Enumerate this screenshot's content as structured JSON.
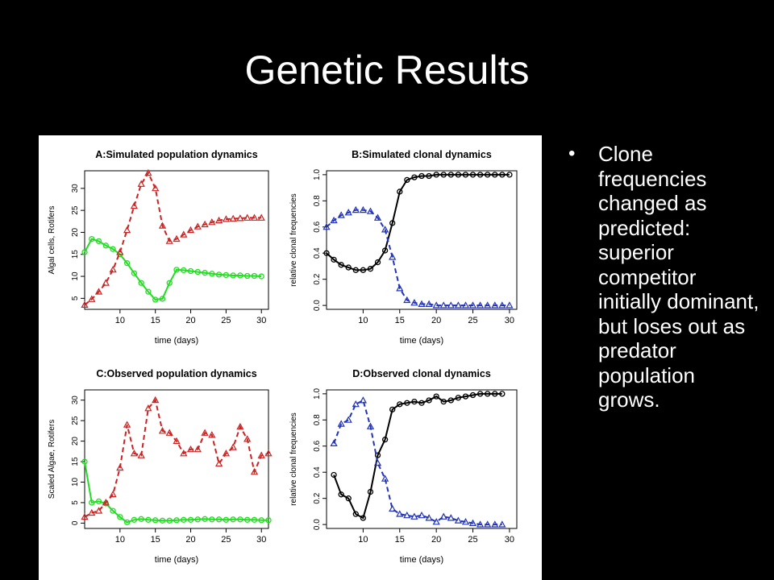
{
  "slide": {
    "title": "Genetic Results"
  },
  "bullets": [
    {
      "text": "Clone frequencies changed as predicted: superior competitor initially dominant, but loses out as predator population grows."
    }
  ],
  "colors": {
    "algae": "#22dd22",
    "rotifers": "#cc2222",
    "clone_blue": "#2233bb",
    "clone_black": "#000000"
  },
  "chart_data": [
    {
      "type": "line",
      "title": "A:Simulated population dynamics",
      "xlabel": "time (days)",
      "ylabel": "Algal cells, Rotifers",
      "xlim": [
        5,
        31
      ],
      "ylim": [
        2.5,
        34
      ],
      "xticks": [
        10,
        15,
        20,
        25,
        30
      ],
      "yticks": [
        5,
        10,
        15,
        20,
        25,
        30
      ],
      "series": [
        {
          "style": "green-solid-circle",
          "x": [
            5,
            6,
            7,
            8,
            9,
            10,
            11,
            12,
            13,
            14,
            15,
            16,
            17,
            18,
            19,
            20,
            21,
            22,
            23,
            24,
            25,
            26,
            27,
            28,
            29,
            30
          ],
          "values": [
            15.5,
            18.5,
            18,
            17,
            16.2,
            15,
            13,
            10.7,
            8.5,
            6.5,
            4.7,
            4.9,
            8.5,
            11.5,
            11.4,
            11.2,
            11,
            10.8,
            10.6,
            10.4,
            10.3,
            10.2,
            10.2,
            10.1,
            10.1,
            10
          ]
        },
        {
          "style": "red-dashed-triangle",
          "x": [
            5,
            6,
            7,
            8,
            9,
            10,
            11,
            12,
            13,
            14,
            15,
            16,
            17,
            18,
            19,
            20,
            21,
            22,
            23,
            24,
            25,
            26,
            27,
            28,
            29,
            30
          ],
          "values": [
            3.5,
            4.8,
            6.5,
            8.5,
            11.5,
            15.5,
            20.5,
            26,
            31,
            33.5,
            30,
            21.5,
            18,
            18.5,
            19.5,
            20.5,
            21.3,
            21.8,
            22.3,
            22.7,
            23,
            23.1,
            23.2,
            23.3,
            23.3,
            23.3
          ]
        }
      ]
    },
    {
      "type": "line",
      "title": "B:Simulated clonal dynamics",
      "xlabel": "time (days)",
      "ylabel": "relative clonal frequencies",
      "xlim": [
        5,
        31
      ],
      "ylim": [
        -0.03,
        1.03
      ],
      "xticks": [
        10,
        15,
        20,
        25,
        30
      ],
      "yticks": [
        "0.0",
        "0.2",
        "0.4",
        "0.6",
        "0.8",
        "1.0"
      ],
      "series": [
        {
          "style": "black-solid-circle",
          "x": [
            5,
            6,
            7,
            8,
            9,
            10,
            11,
            12,
            13,
            14,
            15,
            16,
            17,
            18,
            19,
            20,
            21,
            22,
            23,
            24,
            25,
            26,
            27,
            28,
            29,
            30
          ],
          "values": [
            0.4,
            0.35,
            0.31,
            0.29,
            0.27,
            0.27,
            0.28,
            0.33,
            0.42,
            0.63,
            0.87,
            0.96,
            0.98,
            0.99,
            0.99,
            1.0,
            1.0,
            1.0,
            1.0,
            1.0,
            1.0,
            1.0,
            1.0,
            1.0,
            1.0,
            1.0
          ]
        },
        {
          "style": "blue-dashed-triangle",
          "x": [
            5,
            6,
            7,
            8,
            9,
            10,
            11,
            12,
            13,
            14,
            15,
            16,
            17,
            18,
            19,
            20,
            21,
            22,
            23,
            24,
            25,
            26,
            27,
            28,
            29,
            30
          ],
          "values": [
            0.6,
            0.65,
            0.69,
            0.71,
            0.73,
            0.73,
            0.72,
            0.67,
            0.58,
            0.37,
            0.13,
            0.04,
            0.02,
            0.01,
            0.01,
            0.0,
            0.0,
            0.0,
            0.0,
            0.0,
            0.0,
            0.0,
            0.0,
            0.0,
            0.0,
            0.0
          ]
        }
      ]
    },
    {
      "type": "line",
      "title": "C:Observed population dynamics",
      "xlabel": "time (days)",
      "ylabel": "Scaled Algae, Rotifers",
      "xlim": [
        5,
        31
      ],
      "ylim": [
        -1.3,
        32.5
      ],
      "xticks": [
        10,
        15,
        20,
        25,
        30
      ],
      "yticks": [
        0,
        5,
        10,
        15,
        20,
        25,
        30
      ],
      "series": [
        {
          "style": "green-solid-circle",
          "x": [
            5,
            6,
            7,
            8,
            9,
            10,
            11,
            12,
            13,
            14,
            15,
            16,
            17,
            18,
            19,
            20,
            21,
            22,
            23,
            24,
            25,
            26,
            27,
            28,
            29,
            30,
            31
          ],
          "values": [
            15,
            5,
            5.3,
            4.8,
            3,
            1.5,
            0.2,
            0.8,
            1,
            0.8,
            0.7,
            0.6,
            0.6,
            0.7,
            0.8,
            0.8,
            0.9,
            1,
            0.9,
            0.9,
            0.8,
            0.9,
            0.9,
            0.8,
            0.8,
            0.7,
            0.7
          ]
        },
        {
          "style": "red-dashed-triangle",
          "x": [
            5,
            6,
            7,
            8,
            9,
            10,
            11,
            12,
            13,
            14,
            15,
            16,
            17,
            18,
            19,
            20,
            21,
            22,
            23,
            24,
            25,
            26,
            27,
            28,
            29,
            30,
            31
          ],
          "values": [
            1.5,
            2.5,
            3,
            5,
            7,
            13.5,
            24,
            17,
            16.5,
            28,
            30,
            22.5,
            22,
            20,
            17,
            18,
            18,
            22,
            21.5,
            14.5,
            17,
            18.5,
            23.5,
            20.5,
            12.5,
            16.5,
            17
          ]
        }
      ]
    },
    {
      "type": "line",
      "title": "D:Observed clonal dynamics",
      "xlabel": "time (days)",
      "ylabel": "relative clonal frequencies",
      "xlim": [
        5,
        31
      ],
      "ylim": [
        -0.03,
        1.03
      ],
      "xticks": [
        10,
        15,
        20,
        25,
        30
      ],
      "yticks": [
        "0.0",
        "0.2",
        "0.4",
        "0.6",
        "0.8",
        "1.0"
      ],
      "series": [
        {
          "style": "black-solid-circle",
          "x": [
            6,
            7,
            8,
            9,
            10,
            11,
            12,
            13,
            14,
            15,
            16,
            17,
            18,
            19,
            20,
            21,
            22,
            23,
            24,
            25,
            26,
            27,
            28,
            29
          ],
          "values": [
            0.38,
            0.23,
            0.2,
            0.08,
            0.05,
            0.25,
            0.53,
            0.65,
            0.88,
            0.92,
            0.93,
            0.94,
            0.93,
            0.95,
            0.98,
            0.94,
            0.95,
            0.97,
            0.98,
            0.99,
            1.0,
            1.0,
            1.0,
            1.0
          ]
        },
        {
          "style": "blue-dashed-triangle",
          "x": [
            6,
            7,
            8,
            9,
            10,
            11,
            12,
            13,
            14,
            15,
            16,
            17,
            18,
            19,
            20,
            21,
            22,
            23,
            24,
            25,
            26,
            27,
            28,
            29
          ],
          "values": [
            0.62,
            0.77,
            0.8,
            0.92,
            0.95,
            0.75,
            0.47,
            0.35,
            0.12,
            0.08,
            0.07,
            0.06,
            0.07,
            0.05,
            0.02,
            0.06,
            0.05,
            0.03,
            0.02,
            0.01,
            0.0,
            0.0,
            0.0,
            0.0
          ]
        }
      ]
    }
  ]
}
